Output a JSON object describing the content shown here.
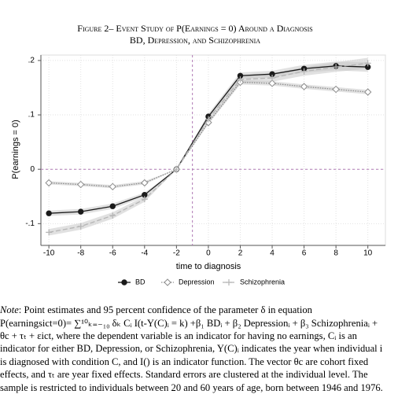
{
  "chart_data": {
    "type": "line",
    "title": [
      "Figure 2– Event Study of P(Earnings = 0) Around a Diagnosis",
      "BD, Depression, and Schizophrenia"
    ],
    "x_label": "time to diagnosis",
    "y_label": "P(earnings = 0)",
    "x": [
      -10,
      -8,
      -6,
      -4,
      -2,
      0,
      2,
      4,
      6,
      8,
      10
    ],
    "series": [
      {
        "name": "BD",
        "color": "#1a1a1a",
        "marker": "circle",
        "dash": "solid",
        "values": [
          -0.081,
          -0.078,
          -0.068,
          -0.047,
          0,
          0.097,
          0.172,
          0.175,
          0.185,
          0.19,
          0.188
        ],
        "ci": [
          0.005,
          0.005,
          0.005,
          0.004,
          0,
          0.005,
          0.006,
          0.006,
          0.007,
          0.008,
          0.009
        ]
      },
      {
        "name": "Depression",
        "color": "#8c8c8c",
        "marker": "diamond",
        "dash": "dotted",
        "values": [
          -0.025,
          -0.028,
          -0.032,
          -0.025,
          0,
          0.086,
          0.16,
          0.158,
          0.152,
          0.147,
          0.142
        ],
        "ci": [
          0.003,
          0.003,
          0.003,
          0.003,
          0,
          0.003,
          0.004,
          0.004,
          0.004,
          0.004,
          0.004
        ]
      },
      {
        "name": "Schizophrenia",
        "color": "#b5b5b5",
        "marker": "plus",
        "dash": "dashed",
        "values": [
          -0.116,
          -0.105,
          -0.085,
          -0.055,
          0,
          0.092,
          0.165,
          0.168,
          0.18,
          0.188,
          0.195
        ],
        "ci": [
          0.006,
          0.006,
          0.006,
          0.005,
          0,
          0.006,
          0.007,
          0.007,
          0.008,
          0.009,
          0.01
        ]
      }
    ],
    "xlim": [
      -10.5,
      11.1
    ],
    "xticks": [
      -10,
      -8,
      -6,
      -4,
      -2,
      0,
      2,
      4,
      6,
      8,
      10
    ],
    "ylim": [
      -0.14,
      0.21
    ],
    "yticks": [
      {
        "value": -0.1,
        "label": "-.1"
      },
      0,
      {
        "value": 0.1,
        "label": ".1"
      },
      {
        "value": 0.2,
        "label": ".2"
      }
    ],
    "grid": true,
    "ref_x": -1,
    "ref_y": 0,
    "ref_color": "#b07ab5",
    "legend": "bottom"
  },
  "note": {
    "label": "Note",
    "lines": [
      ": Point estimates and 95 percent confidence of the parameter δ in equation",
      "P(earningsict=0)= ∑¹⁰ₖ₌₋₁₀ δₖ Cᵢ I(t-Y(C)ᵢ = k) +β₁ BDᵢ +  β₂ Depressionᵢ + β₃ Schizophreniaᵢ +",
      "θc + τₜ + εict, where the dependent variable is an indicator for having no earnings,  Cᵢ is an",
      "indicator for either BD, Depression, or Schizophrenia, Y(C)ᵢ indicates the year when individual i",
      "is diagnosed with condition C, and I()  is an indicator function.  The vector θc are cohort fixed",
      "effects, and τₜ are year fixed effects. Standard errors are clustered at the individual level. The",
      "sample is restricted to individuals between 20 and 60 years of age, born between 1946 and 1976."
    ]
  }
}
